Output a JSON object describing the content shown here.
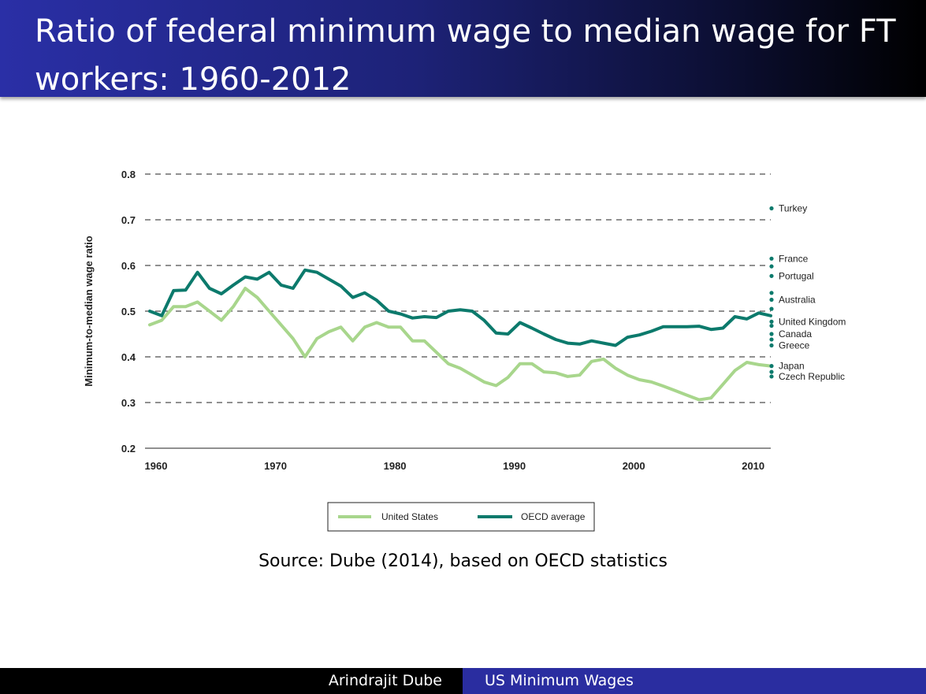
{
  "slide": {
    "title": "Ratio of federal minimum wage to median wage for FT workers: 1960-2012",
    "source": "Source: Dube (2014), based on OECD statistics",
    "footer_author": "Arindrajit Dube",
    "footer_title": "US Minimum Wages"
  },
  "colors": {
    "us": "#a8d68c",
    "oecd": "#0c7a6c",
    "country_dot": "#0c7a6c",
    "grid": "#222222"
  },
  "chart_data": {
    "type": "line",
    "ylabel": "Minimum-to-median wage ratio",
    "xlabel": "",
    "xlim": [
      1960,
      2012
    ],
    "ylim": [
      0.2,
      0.8
    ],
    "x_ticks": [
      1960,
      1970,
      1980,
      1990,
      2000,
      2010
    ],
    "y_ticks": [
      "0.2",
      "0.3",
      "0.4",
      "0.5",
      "0.6",
      "0.7",
      "0.8"
    ],
    "grid": "dashed horizontal",
    "legend_position": "bottom",
    "series": [
      {
        "name": "United States",
        "x": [
          1960,
          1961,
          1962,
          1963,
          1964,
          1965,
          1966,
          1967,
          1968,
          1969,
          1970,
          1971,
          1972,
          1973,
          1974,
          1975,
          1976,
          1977,
          1978,
          1979,
          1980,
          1981,
          1982,
          1983,
          1984,
          1985,
          1986,
          1987,
          1988,
          1989,
          1990,
          1991,
          1992,
          1993,
          1994,
          1995,
          1996,
          1997,
          1998,
          1999,
          2000,
          2001,
          2002,
          2003,
          2004,
          2005,
          2006,
          2007,
          2008,
          2009,
          2010,
          2011,
          2012
        ],
        "values": [
          0.47,
          0.48,
          0.51,
          0.51,
          0.52,
          0.5,
          0.48,
          0.51,
          0.55,
          0.53,
          0.5,
          0.47,
          0.44,
          0.4,
          0.44,
          0.455,
          0.465,
          0.435,
          0.465,
          0.475,
          0.465,
          0.465,
          0.435,
          0.435,
          0.41,
          0.385,
          0.375,
          0.36,
          0.345,
          0.337,
          0.355,
          0.385,
          0.385,
          0.367,
          0.365,
          0.357,
          0.36,
          0.39,
          0.395,
          0.375,
          0.36,
          0.35,
          0.345,
          0.336,
          0.326,
          0.316,
          0.306,
          0.31,
          0.34,
          0.37,
          0.388,
          0.383,
          0.38
        ]
      },
      {
        "name": "OECD average",
        "x": [
          1960,
          1961,
          1962,
          1963,
          1964,
          1965,
          1966,
          1967,
          1968,
          1969,
          1970,
          1971,
          1972,
          1973,
          1974,
          1975,
          1976,
          1977,
          1978,
          1979,
          1980,
          1981,
          1982,
          1983,
          1984,
          1985,
          1986,
          1987,
          1988,
          1989,
          1990,
          1991,
          1992,
          1993,
          1994,
          1995,
          1996,
          1997,
          1998,
          1999,
          2000,
          2001,
          2002,
          2003,
          2004,
          2005,
          2006,
          2007,
          2008,
          2009,
          2010,
          2011,
          2012
        ],
        "values": [
          0.5,
          0.49,
          0.545,
          0.546,
          0.585,
          0.55,
          0.538,
          0.557,
          0.575,
          0.57,
          0.585,
          0.557,
          0.55,
          0.59,
          0.585,
          0.57,
          0.555,
          0.53,
          0.54,
          0.524,
          0.5,
          0.494,
          0.485,
          0.488,
          0.486,
          0.5,
          0.503,
          0.5,
          0.48,
          0.452,
          0.45,
          0.475,
          0.463,
          0.45,
          0.438,
          0.43,
          0.428,
          0.435,
          0.43,
          0.425,
          0.443,
          0.448,
          0.456,
          0.466,
          0.466,
          0.466,
          0.467,
          0.46,
          0.463,
          0.488,
          0.483,
          0.496,
          0.49
        ]
      }
    ],
    "countries_2012": [
      {
        "name": "Turkey",
        "value": 0.725
      },
      {
        "name": "France",
        "value": 0.615
      },
      {
        "name": "",
        "value": 0.598
      },
      {
        "name": "Portugal",
        "value": 0.577
      },
      {
        "name": "",
        "value": 0.54
      },
      {
        "name": "Australia",
        "value": 0.525
      },
      {
        "name": "",
        "value": 0.505
      },
      {
        "name": "United Kingdom",
        "value": 0.477
      },
      {
        "name": "",
        "value": 0.468
      },
      {
        "name": "Canada",
        "value": 0.45
      },
      {
        "name": "",
        "value": 0.438
      },
      {
        "name": "Greece",
        "value": 0.425
      },
      {
        "name": "Japan",
        "value": 0.38
      },
      {
        "name": "",
        "value": 0.367
      },
      {
        "name": "Czech Republic",
        "value": 0.357
      }
    ]
  }
}
